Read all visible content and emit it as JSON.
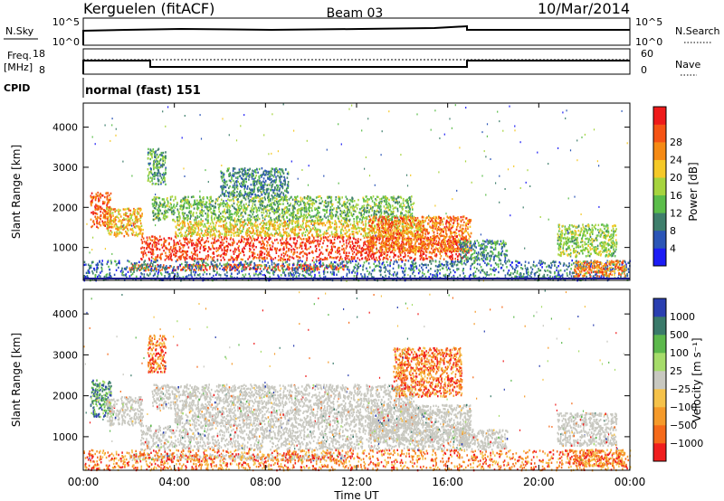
{
  "header": {
    "station": "Kerguelen (fitACF)",
    "beam": "Beam 03",
    "date": "10/Mar/2014"
  },
  "meta_panels": {
    "nsky": {
      "label": "N.Sky",
      "tick_top": "10^5",
      "tick_bottom": "10^0",
      "right_label": "N.Search",
      "right_tick_top": "10^5",
      "right_tick_bottom": "10^0"
    },
    "freq": {
      "label_line1": "Freq.",
      "label_line2": "[MHz]",
      "tick_top": "18",
      "tick_bottom": "8",
      "right_label": "Nave",
      "right_tick_top": "60",
      "right_tick_bottom": "0"
    },
    "cpid": {
      "label": "CPID",
      "value": "normal (fast) 151"
    }
  },
  "colors": {
    "scale": [
      "#1c1cf5",
      "#2b55b7",
      "#3f7f6c",
      "#5bbd4a",
      "#a6d43e",
      "#f5c928",
      "#f58a14",
      "#f55314",
      "#ee1a1a"
    ],
    "velocity_scale": [
      "#f01e1e",
      "#f56a1a",
      "#f59a2a",
      "#f5c24a",
      "#c8c8c0",
      "#a6dc6a",
      "#5cb84c",
      "#3a7a6a",
      "#2a3fb0"
    ],
    "ground_scatter": "#c8c8c0"
  },
  "chart_data": [
    {
      "type": "heatmap",
      "name": "power",
      "ylabel": "Slant Range [km]",
      "xlabel": "",
      "yticks": [
        "1000",
        "2000",
        "3000",
        "4000"
      ],
      "ylim": [
        180,
        4600
      ],
      "colorbar": {
        "label": "Power [dB]",
        "ticks": [
          "4",
          "8",
          "12",
          "16",
          "20",
          "24",
          "28"
        ]
      },
      "blobs": [
        {
          "t0": 0.3,
          "t1": 1.2,
          "r0": 1500,
          "r1": 2400,
          "v": 26
        },
        {
          "t0": 1.0,
          "t1": 2.6,
          "r0": 1300,
          "r1": 2000,
          "v": 20
        },
        {
          "t0": 2.5,
          "t1": 16.8,
          "r0": 700,
          "r1": 1300,
          "v": 28
        },
        {
          "t0": 4.0,
          "t1": 15.0,
          "r0": 1300,
          "r1": 1700,
          "v": 18
        },
        {
          "t0": 3.0,
          "t1": 14.5,
          "r0": 1700,
          "r1": 2300,
          "v": 12
        },
        {
          "t0": 2.0,
          "t1": 11.5,
          "r0": 450,
          "r1": 600,
          "v": 26
        },
        {
          "t0": 12.5,
          "t1": 17.0,
          "r0": 900,
          "r1": 1800,
          "v": 24
        },
        {
          "t0": 16.5,
          "t1": 18.6,
          "r0": 700,
          "r1": 1200,
          "v": 8
        },
        {
          "t0": 20.8,
          "t1": 23.4,
          "r0": 800,
          "r1": 1600,
          "v": 14
        },
        {
          "t0": 2.8,
          "t1": 3.6,
          "r0": 2600,
          "r1": 3500,
          "v": 10
        },
        {
          "t0": 6.0,
          "t1": 9.0,
          "r0": 2300,
          "r1": 3000,
          "v": 8
        },
        {
          "t0": 0.0,
          "t1": 24.0,
          "r0": 200,
          "r1": 700,
          "v": 6
        },
        {
          "t0": 21.5,
          "t1": 23.8,
          "r0": 300,
          "r1": 700,
          "v": 24
        }
      ]
    },
    {
      "type": "heatmap",
      "name": "velocity",
      "ylabel": "Slant Range [km]",
      "xlabel": "Time UT",
      "yticks": [
        "1000",
        "2000",
        "3000",
        "4000"
      ],
      "xticks": [
        "00:00",
        "04:00",
        "08:00",
        "12:00",
        "16:00",
        "20:00",
        "00:00"
      ],
      "ylim": [
        180,
        4600
      ],
      "colorbar": {
        "label": "Velocity [m s⁻¹]",
        "ticks": [
          "1000",
          "500",
          "100",
          "25",
          "−25",
          "−100",
          "−500",
          "−1000"
        ]
      },
      "blobs": [
        {
          "t0": 0.3,
          "t1": 1.2,
          "r0": 1500,
          "r1": 2400,
          "v": 800
        },
        {
          "t0": 1.0,
          "t1": 2.6,
          "r0": 1300,
          "r1": 2000,
          "v": 0
        },
        {
          "t0": 2.5,
          "t1": 16.8,
          "r0": 700,
          "r1": 1300,
          "v": 0
        },
        {
          "t0": 4.0,
          "t1": 15.0,
          "r0": 1300,
          "r1": 1700,
          "v": 0
        },
        {
          "t0": 3.0,
          "t1": 14.5,
          "r0": 1700,
          "r1": 2300,
          "v": 0
        },
        {
          "t0": 2.0,
          "t1": 11.5,
          "r0": 450,
          "r1": 600,
          "v": 0
        },
        {
          "t0": 12.5,
          "t1": 17.0,
          "r0": 900,
          "r1": 1800,
          "v": 0
        },
        {
          "t0": 16.5,
          "t1": 18.6,
          "r0": 700,
          "r1": 1200,
          "v": 0
        },
        {
          "t0": 20.8,
          "t1": 23.4,
          "r0": 800,
          "r1": 1600,
          "v": 0
        },
        {
          "t0": 2.8,
          "t1": 3.6,
          "r0": 2600,
          "r1": 3500,
          "v": -300
        },
        {
          "t0": 13.6,
          "t1": 16.6,
          "r0": 2000,
          "r1": 3200,
          "v": -300
        },
        {
          "t0": 0.0,
          "t1": 24.0,
          "r0": 200,
          "r1": 700,
          "v": -150
        },
        {
          "t0": 21.5,
          "t1": 23.8,
          "r0": 300,
          "r1": 700,
          "v": -300
        }
      ]
    }
  ]
}
